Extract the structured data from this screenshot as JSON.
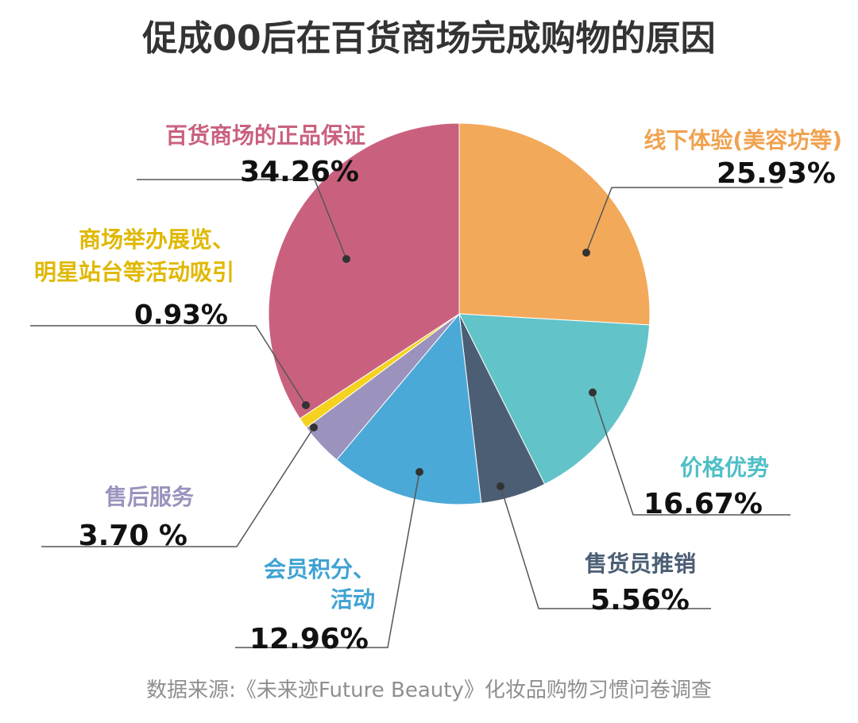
{
  "chart_data": {
    "type": "pie",
    "title": "促成00后在百货商场完成购物的原因",
    "source": "数据来源:《未来迹Future Beauty》化妆品购物习惯问卷调查",
    "slices": [
      {
        "label_lines": [
          "线下体验(美容坊等)"
        ],
        "value": 25.93,
        "value_text": "25.93%",
        "color": "#F3A95A"
      },
      {
        "label_lines": [
          "价格优势"
        ],
        "value": 16.67,
        "value_text": "16.67%",
        "color": "#62C3C9"
      },
      {
        "label_lines": [
          "售货员推销"
        ],
        "value": 5.56,
        "value_text": "5.56%",
        "color": "#4B5E74"
      },
      {
        "label_lines": [
          "会员积分、",
          "活动"
        ],
        "value": 12.96,
        "value_text": "12.96%",
        "color": "#4BA9D8"
      },
      {
        "label_lines": [
          "售后服务"
        ],
        "value": 3.7,
        "value_text": "3.70 %",
        "color": "#9B93BD"
      },
      {
        "label_lines": [
          "商场举办展览、",
          "明星站台等活动吸引"
        ],
        "value": 0.93,
        "value_text": "0.93%",
        "color": "#F5D21F"
      },
      {
        "label_lines": [
          "百货商场的正品保证"
        ],
        "value": 34.26,
        "value_text": "34.26%",
        "color": "#C9617E"
      }
    ]
  }
}
